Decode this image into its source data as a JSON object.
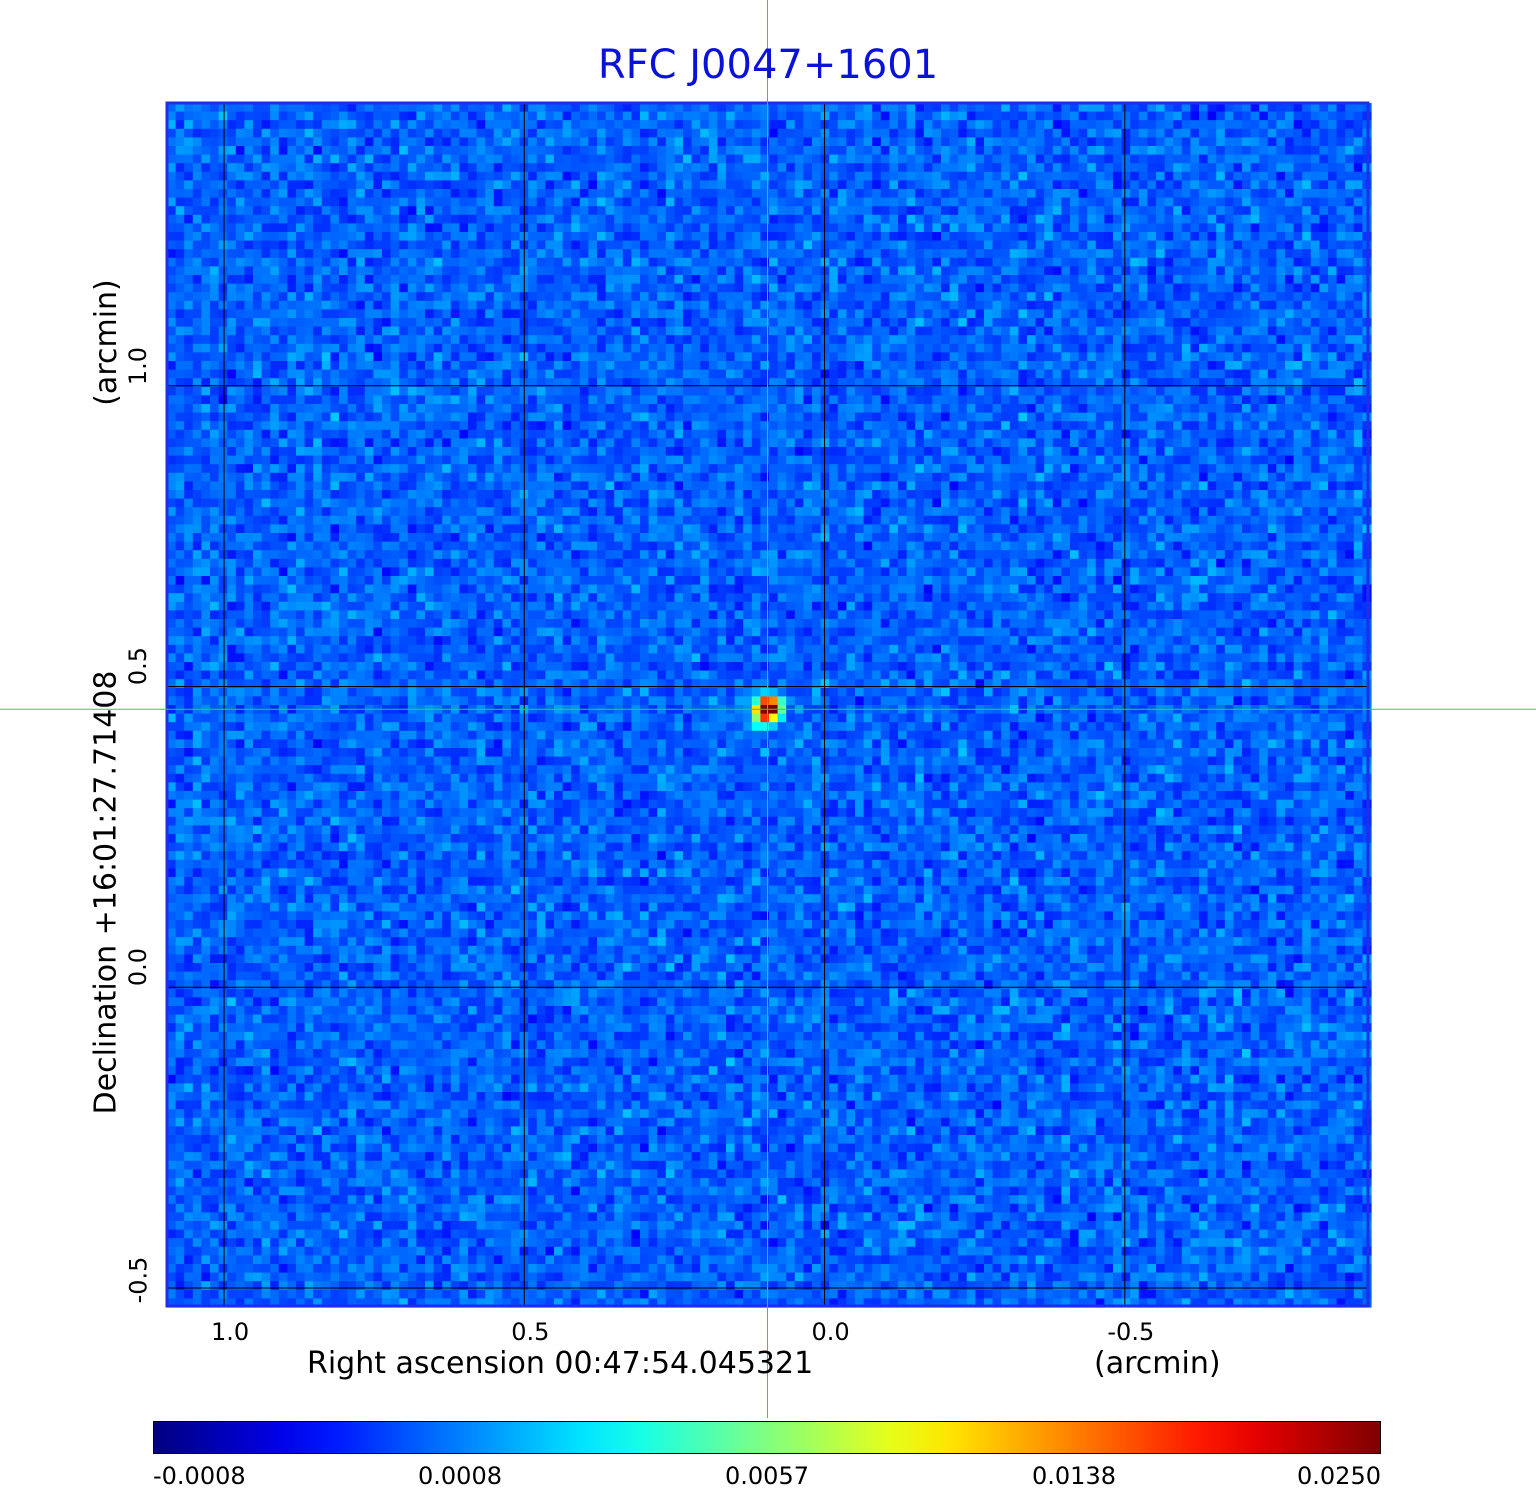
{
  "chart_data": {
    "type": "heatmap",
    "title": "RFC J0047+1601",
    "xlabel": "Right ascension  00:47:54.045321",
    "xunit": "(arcmin)",
    "ylabel": "Declination  +16:01:27.71408",
    "yunit": "(arcmin)",
    "x_ticks": [
      "1.0",
      "0.5",
      "0.0",
      "-0.5"
    ],
    "x_tick_values": [
      1.0,
      0.5,
      0.0,
      -0.5
    ],
    "y_ticks": [
      "1.0",
      "0.5",
      "0.0",
      "-0.5"
    ],
    "y_tick_values": [
      1.0,
      0.5,
      0.0,
      -0.5
    ],
    "xlim": [
      1.095,
      -0.905
    ],
    "ylim": [
      -0.53,
      1.47
    ],
    "grid": true,
    "source": {
      "x": 0.095,
      "y": 0.462,
      "peak": 0.025
    },
    "crosshair": {
      "x": 0.095,
      "y": 0.462,
      "color": "#22dd22"
    },
    "colorbar": {
      "colormap": "jet",
      "ticks": [
        "-0.0008",
        "0.0008",
        "0.0057",
        "0.0138",
        "0.0250"
      ],
      "min": -0.0008,
      "max": 0.025
    },
    "colors": {
      "title": "#0b12d8",
      "frame": "#1f2ee8",
      "crosshair": "#22dd22"
    }
  }
}
